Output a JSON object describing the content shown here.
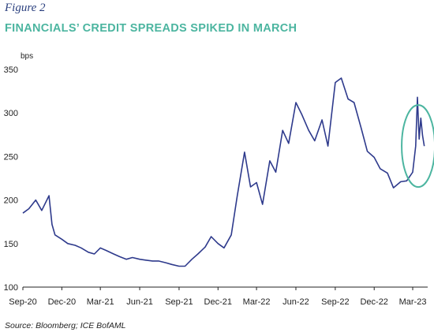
{
  "figure_label": "Figure 2",
  "title": "FINANCIALS’ CREDIT SPREADS SPIKED IN MARCH",
  "source": "Source: Bloomberg; ICE BofAML",
  "colors": {
    "title": "#4cb5a0",
    "line": "#2e3a8c",
    "highlight": "#4cb5a0",
    "label": "#2a3f7e"
  },
  "chart_data": {
    "type": "line",
    "title": "FINANCIALS’ CREDIT SPREADS SPIKED IN MARCH",
    "ylabel": "bps",
    "xlabel": "",
    "ylim": [
      100,
      350
    ],
    "yticks": [
      100,
      150,
      200,
      250,
      300,
      350
    ],
    "xtick_labels": [
      "Sep-20",
      "Dec-20",
      "Mar-21",
      "Jun-21",
      "Sep-21",
      "Dec-21",
      "Mar-22",
      "Jun-22",
      "Sep-22",
      "Dec-22",
      "Mar-23"
    ],
    "grid": false,
    "annotation": "circle around March 2023 spike",
    "series": [
      {
        "x": [
          "2020-09-01",
          "2020-09-15",
          "2020-10-01",
          "2020-10-15",
          "2020-11-01",
          "2020-11-08",
          "2020-11-15",
          "2020-12-01",
          "2020-12-15",
          "2021-01-01",
          "2021-01-15",
          "2021-02-01",
          "2021-02-15",
          "2021-03-01",
          "2021-03-15",
          "2021-04-01",
          "2021-04-15",
          "2021-05-01",
          "2021-05-15",
          "2021-06-01",
          "2021-06-15",
          "2021-07-01",
          "2021-07-15",
          "2021-08-01",
          "2021-08-15",
          "2021-09-01",
          "2021-09-15",
          "2021-10-01",
          "2021-10-15",
          "2021-11-01",
          "2021-11-15",
          "2021-12-01",
          "2021-12-15",
          "2022-01-01",
          "2022-01-15",
          "2022-02-01",
          "2022-02-15",
          "2022-03-01",
          "2022-03-15",
          "2022-04-01",
          "2022-04-15",
          "2022-05-01",
          "2022-05-15",
          "2022-06-01",
          "2022-06-15",
          "2022-07-01",
          "2022-07-15",
          "2022-08-01",
          "2022-08-15",
          "2022-09-01",
          "2022-09-15",
          "2022-10-01",
          "2022-10-15",
          "2022-11-01",
          "2022-11-15",
          "2022-12-01",
          "2022-12-15",
          "2023-01-01",
          "2023-01-15",
          "2023-02-01",
          "2023-02-15",
          "2023-03-01",
          "2023-03-08",
          "2023-03-12",
          "2023-03-16",
          "2023-03-20",
          "2023-03-24",
          "2023-03-28"
        ],
        "values": [
          185,
          190,
          200,
          188,
          205,
          172,
          160,
          155,
          150,
          148,
          145,
          140,
          138,
          145,
          142,
          138,
          135,
          132,
          134,
          132,
          131,
          130,
          130,
          128,
          126,
          124,
          124,
          132,
          138,
          146,
          158,
          150,
          145,
          160,
          205,
          255,
          215,
          220,
          195,
          245,
          232,
          280,
          265,
          312,
          298,
          280,
          268,
          292,
          262,
          335,
          340,
          316,
          312,
          282,
          256,
          249,
          236,
          231,
          214,
          221,
          222,
          232,
          262,
          318,
          270,
          294,
          274,
          262
        ]
      }
    ]
  }
}
